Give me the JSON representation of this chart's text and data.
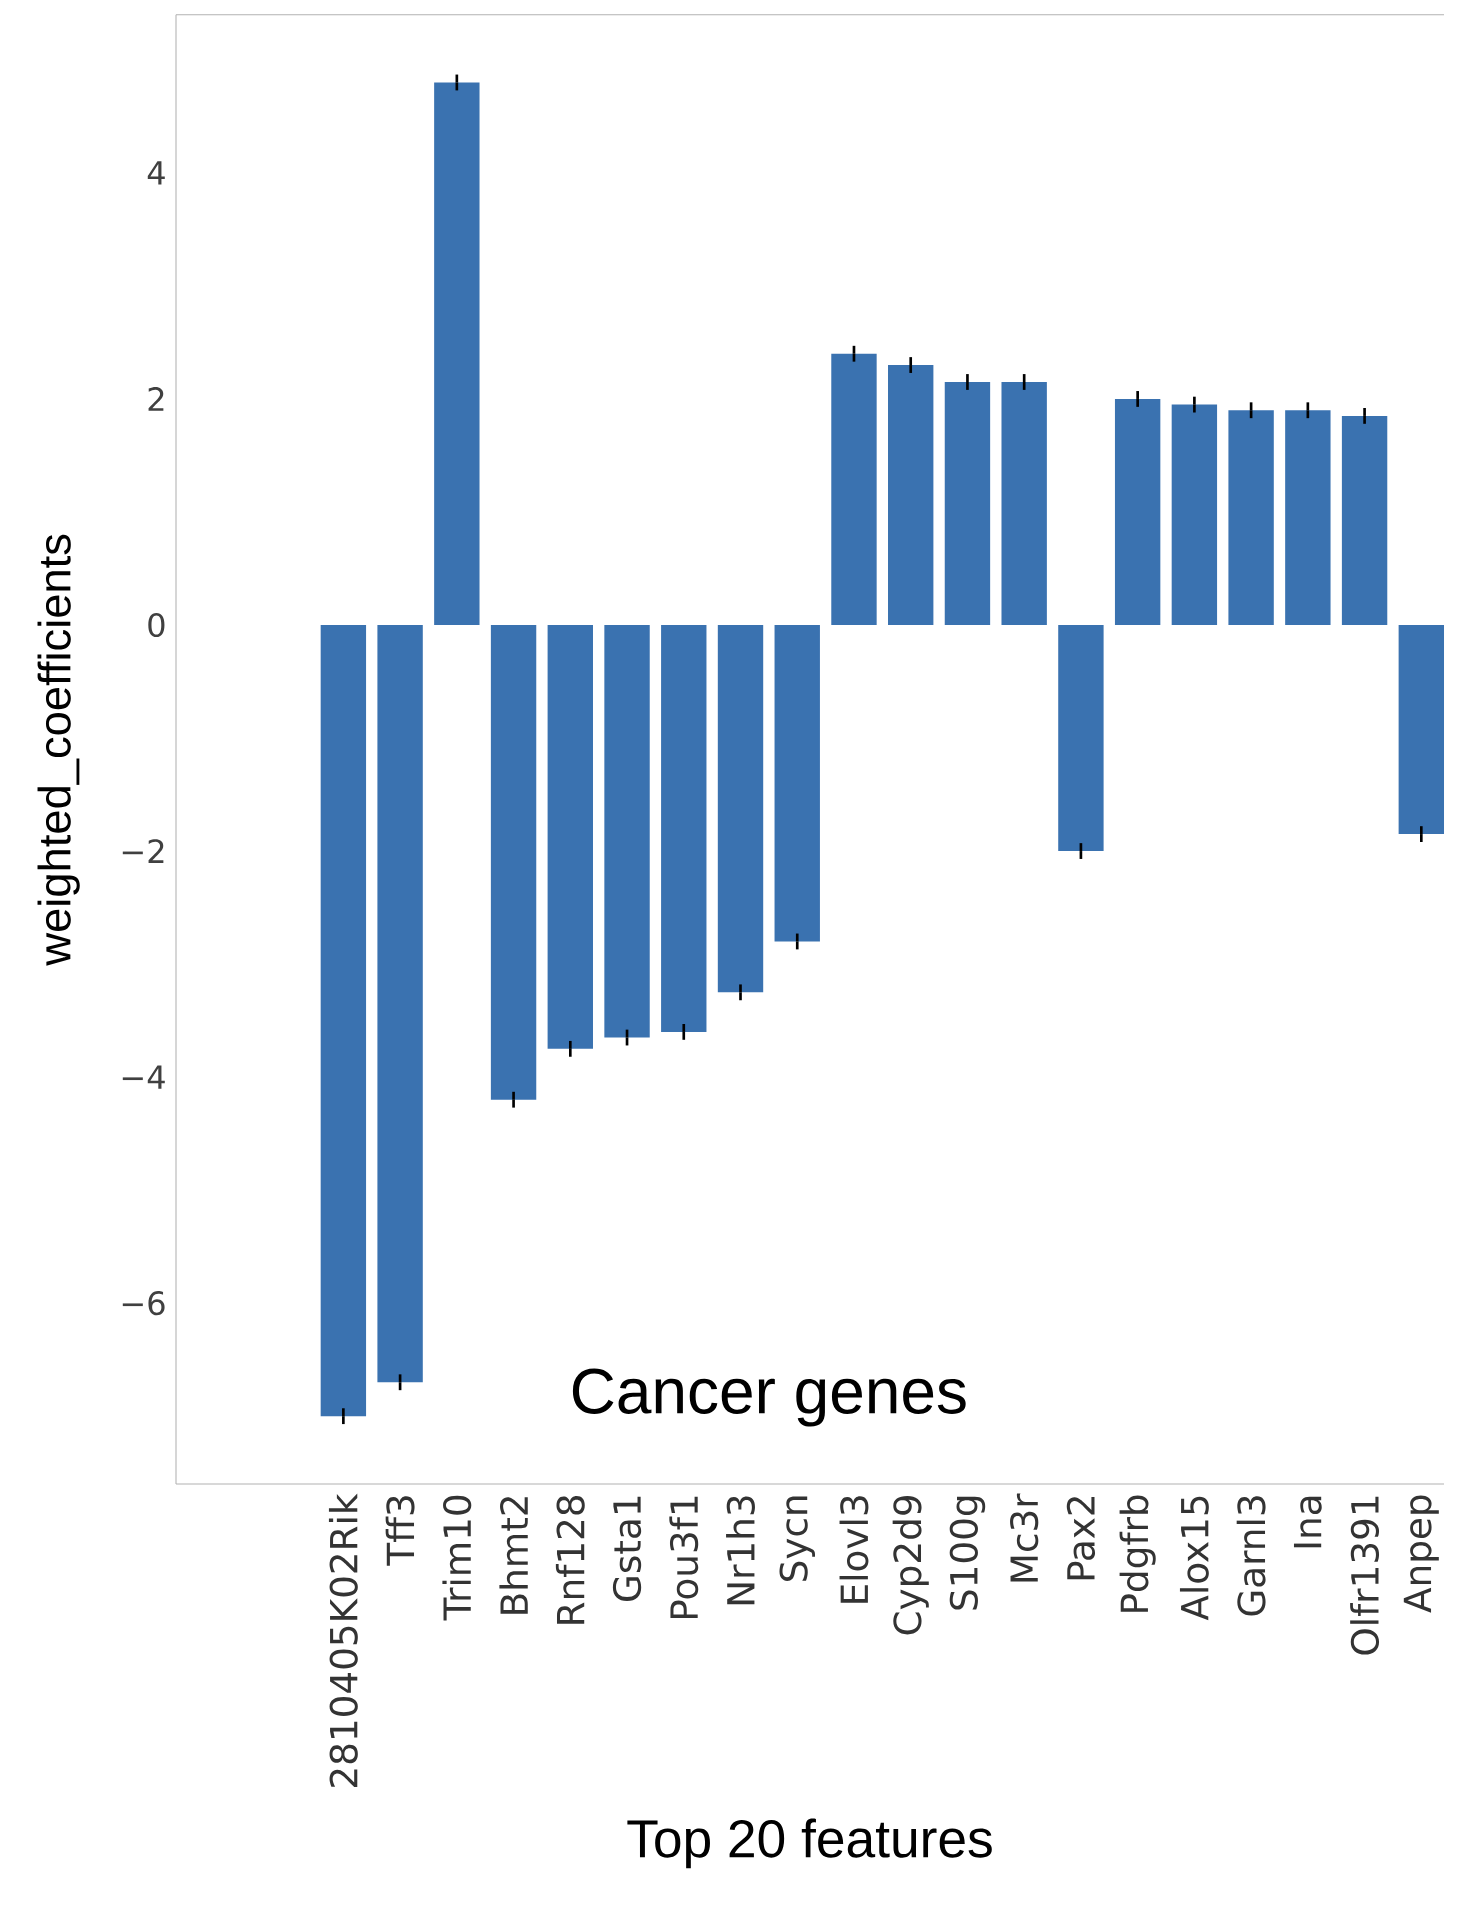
{
  "chart_data": {
    "type": "bar",
    "xlabel": "Top 20 features",
    "ylabel": "weighted_coefficients",
    "categories": [
      "2810405K02Rik",
      "Tff3",
      "Trim10",
      "Bhmt2",
      "Rnf128",
      "Gsta1",
      "Pou3f1",
      "Nr1h3",
      "Sycn",
      "Elovl3",
      "Cyp2d9",
      "S100g",
      "Mc3r",
      "Pax2",
      "Pdgfrb",
      "Alox15",
      "Garnl3",
      "Ina",
      "Olfr1391",
      "Anpep"
    ],
    "values": [
      -7.0,
      -6.7,
      4.8,
      -4.2,
      -3.75,
      -3.65,
      -3.6,
      -3.25,
      -2.8,
      2.4,
      2.3,
      2.15,
      2.15,
      -2.0,
      2.0,
      1.95,
      1.9,
      1.9,
      1.85,
      -1.85
    ],
    "errors": [
      0.07,
      0.07,
      0.07,
      0.07,
      0.07,
      0.07,
      0.07,
      0.07,
      0.07,
      0.07,
      0.07,
      0.07,
      0.07,
      0.07,
      0.07,
      0.07,
      0.07,
      0.07,
      0.07,
      0.07
    ],
    "color": "#3a72b0",
    "ylim": [
      -7.6,
      5.4
    ],
    "yticks": [
      {
        "value": -6,
        "label": "−6"
      },
      {
        "value": -4,
        "label": "−4"
      },
      {
        "value": -2,
        "label": "−2"
      },
      0,
      2,
      4
    ],
    "annotations": [
      "Cancer genes"
    ],
    "grid": false
  }
}
